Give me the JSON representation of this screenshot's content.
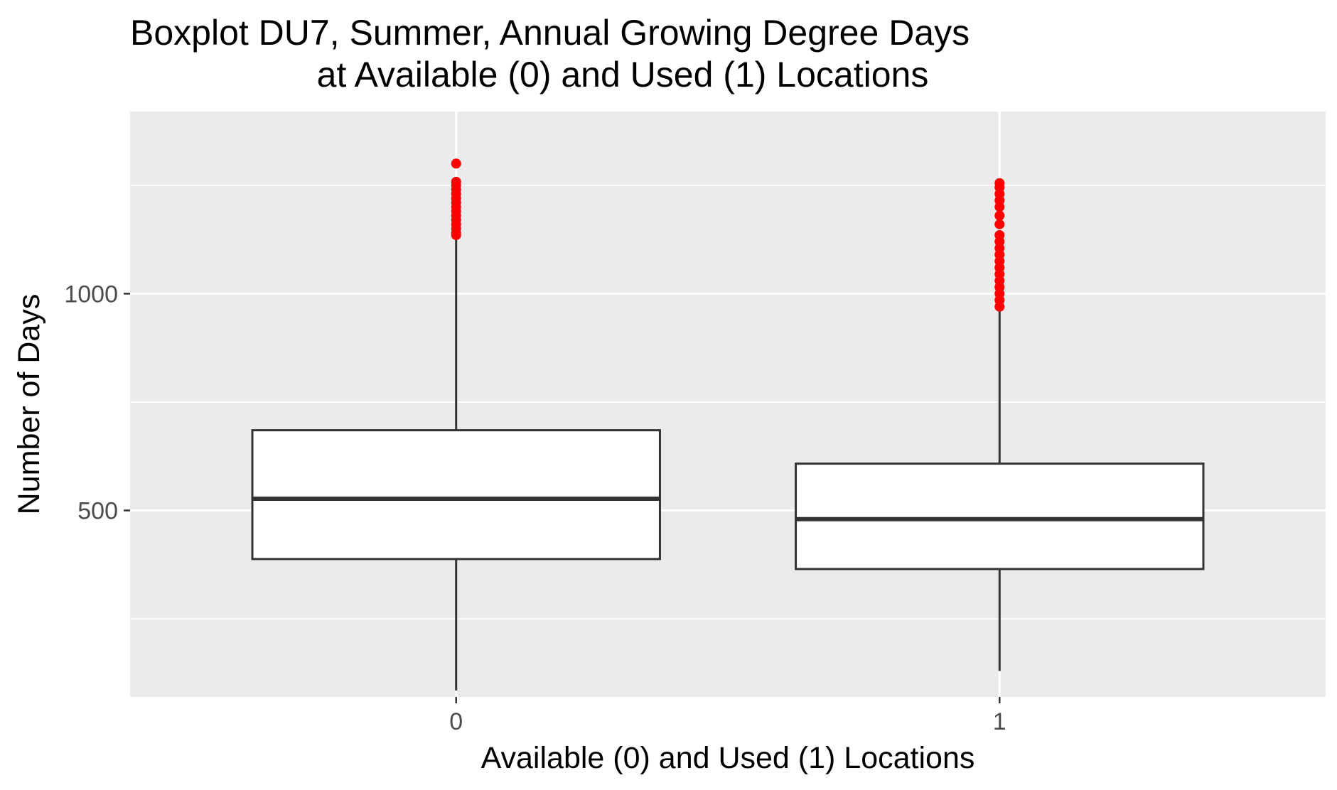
{
  "chart_data": {
    "type": "boxplot",
    "title": "Boxplot DU7, Summer, Annual Growing Degree Days",
    "subtitle": "at Available (0) and Used (1) Locations",
    "xlabel": "Available (0) and Used (1) Locations",
    "ylabel": "Number of Days",
    "categories": [
      "0",
      "1"
    ],
    "ylim": [
      70,
      1420
    ],
    "yticks": [
      500,
      1000
    ],
    "grid": true,
    "legend": "none",
    "boxes": [
      {
        "category": "0",
        "min": 85,
        "q1": 388,
        "median": 527,
        "q3": 685,
        "max": 1130,
        "outliers": [
          1135,
          1140,
          1150,
          1160,
          1170,
          1180,
          1190,
          1200,
          1210,
          1220,
          1230,
          1240,
          1250,
          1258,
          1300
        ]
      },
      {
        "category": "1",
        "min": 130,
        "q1": 365,
        "median": 480,
        "q3": 608,
        "max": 965,
        "outliers": [
          970,
          985,
          1000,
          1015,
          1030,
          1045,
          1060,
          1075,
          1090,
          1105,
          1120,
          1135,
          1160,
          1180,
          1200,
          1215,
          1230,
          1245,
          1255
        ]
      }
    ],
    "colors": {
      "panel": "#ebebeb",
      "grid": "#ffffff",
      "box_fill": "#ffffff",
      "box_line": "#333333",
      "outlier": "#ff0000",
      "tick": "#333333"
    }
  }
}
